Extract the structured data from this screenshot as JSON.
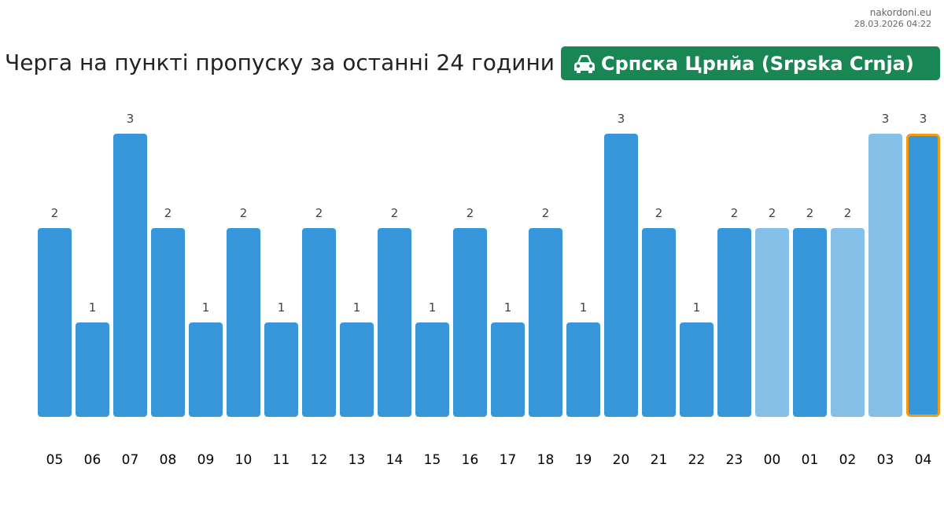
{
  "site": "nakordoni.eu",
  "timestamp": "28.03.2026 04:22",
  "title": "Черга на пункті пропуску за останні 24 години",
  "checkpoint": {
    "name": "Српска Црнйа (Srpska Crnja)",
    "icon": "car-icon"
  },
  "colors": {
    "bar": "#3897db",
    "bar_light": "#84c0e8",
    "highlight_border": "#f39c12",
    "badge": "#198754",
    "label": "#444444",
    "axis_label": "#000000"
  },
  "chart_data": {
    "type": "bar",
    "title": "",
    "xlabel": "",
    "ylabel": "",
    "categories": [
      "05",
      "06",
      "07",
      "08",
      "09",
      "10",
      "11",
      "12",
      "13",
      "14",
      "15",
      "16",
      "17",
      "18",
      "19",
      "20",
      "21",
      "22",
      "23",
      "00",
      "01",
      "02",
      "03",
      "04"
    ],
    "values": [
      2,
      1,
      3,
      2,
      1,
      2,
      1,
      2,
      1,
      2,
      1,
      2,
      1,
      2,
      1,
      3,
      2,
      1,
      2,
      2,
      2,
      2,
      3,
      3
    ],
    "light": [
      false,
      false,
      false,
      false,
      false,
      false,
      false,
      false,
      false,
      false,
      false,
      false,
      false,
      false,
      false,
      false,
      false,
      false,
      false,
      true,
      false,
      true,
      true,
      false
    ],
    "highlighted_category": "04",
    "ylim": [
      0,
      3
    ],
    "grid": false,
    "legend": "none"
  }
}
